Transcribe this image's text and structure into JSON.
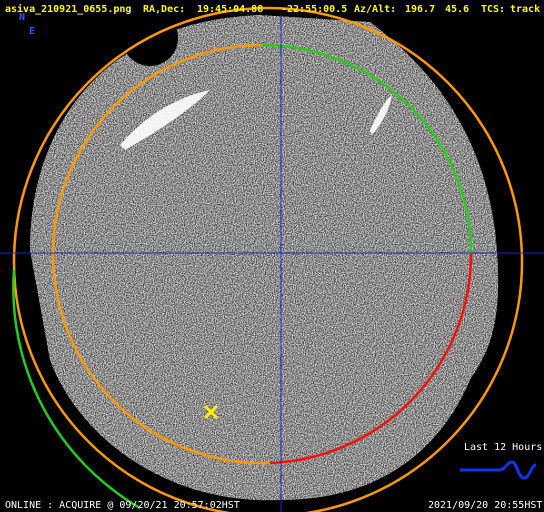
{
  "header": {
    "file": "asiva_210921_0655.png",
    "radec_label": "RA,Dec:",
    "ra": "19:45:04.88",
    "dec": "-22:55:00.5",
    "azalt_label": "Az/Alt:",
    "az": "196.7",
    "alt": "45.6",
    "tcs_label": "TCS:",
    "tcs": "track"
  },
  "compass": {
    "north": "N",
    "east": "E"
  },
  "legend": {
    "label": "Last 12 Hours"
  },
  "footer": {
    "status": "ONLINE : ACQUIRE @ 09/20/21 20:57:02HST",
    "timestamp": "2021/09/20 20:55HST"
  }
}
